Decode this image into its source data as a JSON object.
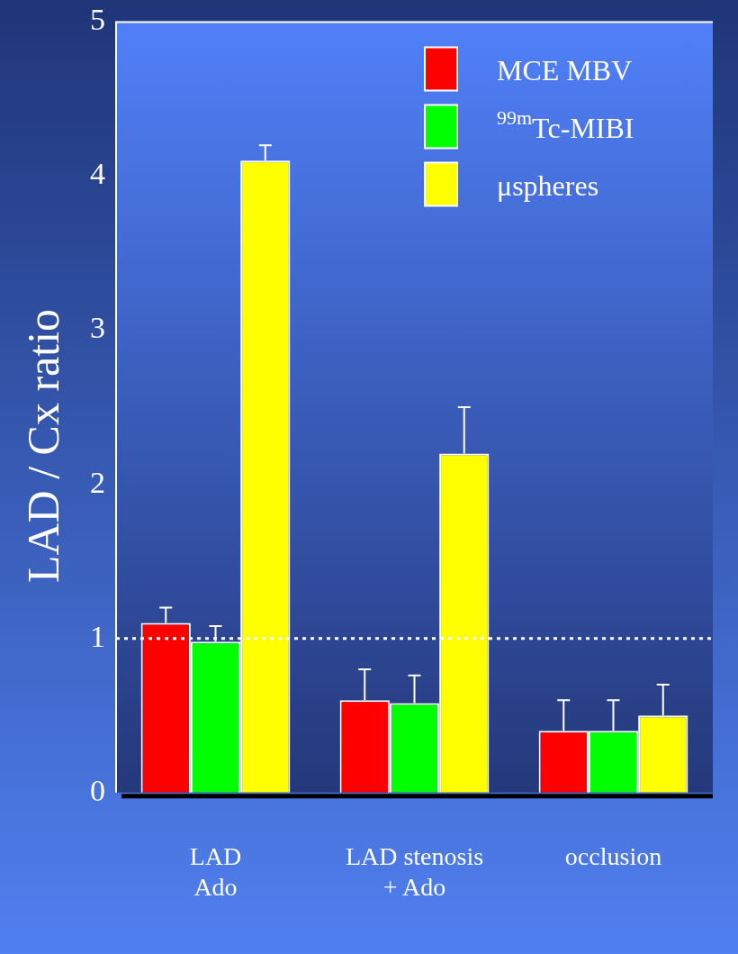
{
  "chart_data": {
    "type": "bar",
    "ylabel": "LAD / Cx ratio",
    "categories": [
      "LAD\nAdo",
      "LAD stenosis\n+ Ado",
      "occlusion"
    ],
    "series": [
      {
        "name": "MCE MBV",
        "color": "#ff0000",
        "values": [
          1.1,
          0.6,
          0.4
        ],
        "errors": [
          [
            1.1,
            1.2
          ],
          [
            0.6,
            0.8
          ],
          [
            0.4,
            0.6
          ]
        ]
      },
      {
        "name": "$^{99m}$Tc-MIBI",
        "color": "#00ff00",
        "values": [
          0.98,
          0.58,
          0.4
        ],
        "errors": [
          [
            0.98,
            1.08
          ],
          [
            0.58,
            0.76
          ],
          [
            0.4,
            0.6
          ]
        ]
      },
      {
        "name": "μspheres",
        "color": "#ffff00",
        "values": [
          4.1,
          2.2,
          0.5
        ],
        "errors": [
          [
            4.1,
            4.2
          ],
          [
            2.2,
            2.5
          ],
          [
            0.5,
            0.7
          ]
        ]
      }
    ],
    "ylim": [
      0,
      5
    ],
    "yticks": [
      0,
      1,
      2,
      3,
      4,
      5
    ],
    "ref_lines": [
      {
        "axis": "y",
        "value": 1,
        "color": "#ffffff",
        "line_style": "dotted"
      }
    ],
    "grid": false,
    "legend": "top right"
  }
}
